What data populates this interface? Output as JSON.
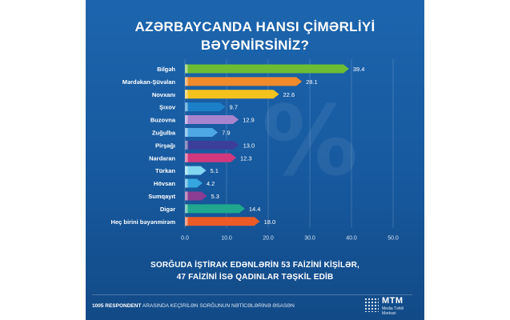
{
  "title_line1": "AZƏRBAYCANDA HANSI ÇİMƏRLİYİ",
  "title_line2": "BƏYƏNİRSİNİZ?",
  "note_line1": "SORĞUDA İŞTİRAK EDƏNLƏRİN 53 FAİZİNİ KİŞİLƏR,",
  "note_line2": "47 FAİZİNİ İSƏ QADINLAR TƏŞKİL EDİB",
  "footer_bold": "1005 RESPONDENT",
  "footer_rest": " ARASINDA KEÇİRİLƏN SORĞUNUN NƏTİCƏLƏRİNƏ ƏSASƏN",
  "logo": {
    "name": "MTM",
    "sub": "Media Təhlil Mərkəzi"
  },
  "chart_data": {
    "type": "bar",
    "orientation": "horizontal",
    "categories": [
      "Bilgəh",
      "Mərdəkan-Şüvəlan",
      "Novxanı",
      "Şıxov",
      "Buzovna",
      "Zuğulba",
      "Pirşağı",
      "Nardaran",
      "Türkan",
      "Hövsan",
      "Sumqayıt",
      "Digər",
      "Heç birini bəyənmirəm"
    ],
    "values": [
      39.4,
      28.1,
      22.6,
      9.7,
      12.9,
      7.9,
      13.0,
      12.3,
      5.1,
      4.2,
      5.3,
      14.4,
      18.0
    ],
    "value_labels": [
      "39.4",
      "28.1",
      "22.6",
      "9.7",
      "12.9",
      "7.9",
      "13.0",
      "12.3",
      "5.1",
      "4.2",
      "5.3",
      "14.4",
      "18.0"
    ],
    "colors": [
      "#6cbd34",
      "#f08a2a",
      "#f4c21c",
      "#1b80c8",
      "#a784cd",
      "#4ea8e3",
      "#3b3f9a",
      "#d2397d",
      "#82d6f0",
      "#35a6de",
      "#8b3d93",
      "#1fa88d",
      "#ec5a28"
    ],
    "xlim": [
      0,
      50
    ],
    "xticks": [
      "0.0",
      "10.0",
      "20.0",
      "30.0",
      "40.0",
      "50.0"
    ],
    "grid": true
  }
}
